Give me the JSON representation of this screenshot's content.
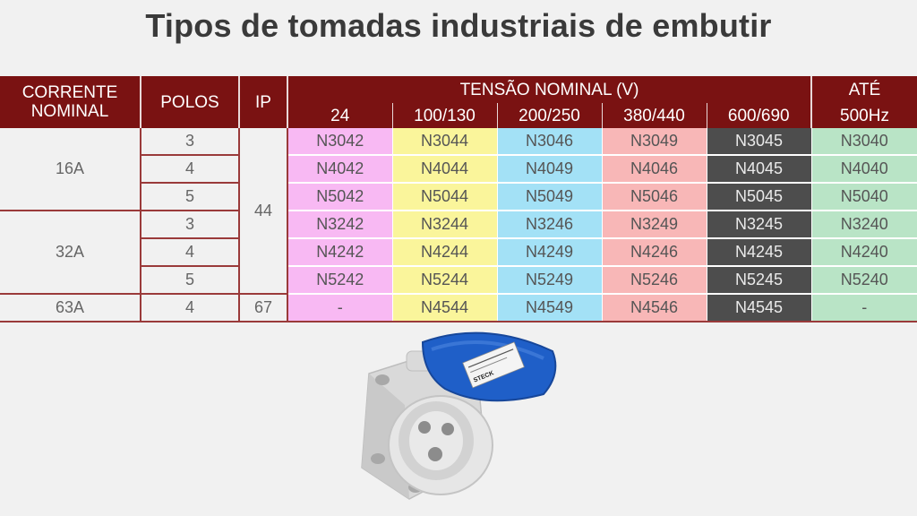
{
  "title": "Tipos de tomadas industriais de embutir",
  "table": {
    "headers": {
      "corrente_line1": "CORRENTE",
      "corrente_line2": "NOMINAL",
      "polos": "POLOS",
      "ip": "IP",
      "tensao": "TENSÃO NOMINAL (V)",
      "ate_line1": "ATÉ",
      "ate_line2": "500Hz",
      "voltages": [
        "24",
        "100/130",
        "200/250",
        "380/440",
        "600/690"
      ]
    },
    "groups": [
      "16A",
      "32A",
      "63A"
    ],
    "ip_values": [
      "44",
      "67"
    ],
    "rows": [
      {
        "polos": "3",
        "codes": [
          "N3042",
          "N3044",
          "N3046",
          "N3049",
          "N3045",
          "N3040"
        ]
      },
      {
        "polos": "4",
        "codes": [
          "N4042",
          "N4044",
          "N4049",
          "N4046",
          "N4045",
          "N4040"
        ]
      },
      {
        "polos": "5",
        "codes": [
          "N5042",
          "N5044",
          "N5049",
          "N5046",
          "N5045",
          "N5040"
        ]
      },
      {
        "polos": "3",
        "codes": [
          "N3242",
          "N3244",
          "N3246",
          "N3249",
          "N3245",
          "N3240"
        ]
      },
      {
        "polos": "4",
        "codes": [
          "N4242",
          "N4244",
          "N4249",
          "N4246",
          "N4245",
          "N4240"
        ]
      },
      {
        "polos": "5",
        "codes": [
          "N5242",
          "N5244",
          "N5249",
          "N5246",
          "N5245",
          "N5240"
        ]
      },
      {
        "polos": "4",
        "codes": [
          "-",
          "N4544",
          "N4549",
          "N4546",
          "N4545",
          "-"
        ]
      }
    ]
  },
  "colors": {
    "header_bg": "#7a1212",
    "v24": "#f8b9f3",
    "v100_130": "#faf59b",
    "v200_250": "#a3e1f6",
    "v380_440": "#f8b7b7",
    "v600_690": "#4d4d4d",
    "v500hz": "#b9e4c6",
    "cover_blue": "#1f5fc8"
  },
  "image": {
    "icon": "industrial-socket-icon",
    "label_brand": "STECK"
  }
}
